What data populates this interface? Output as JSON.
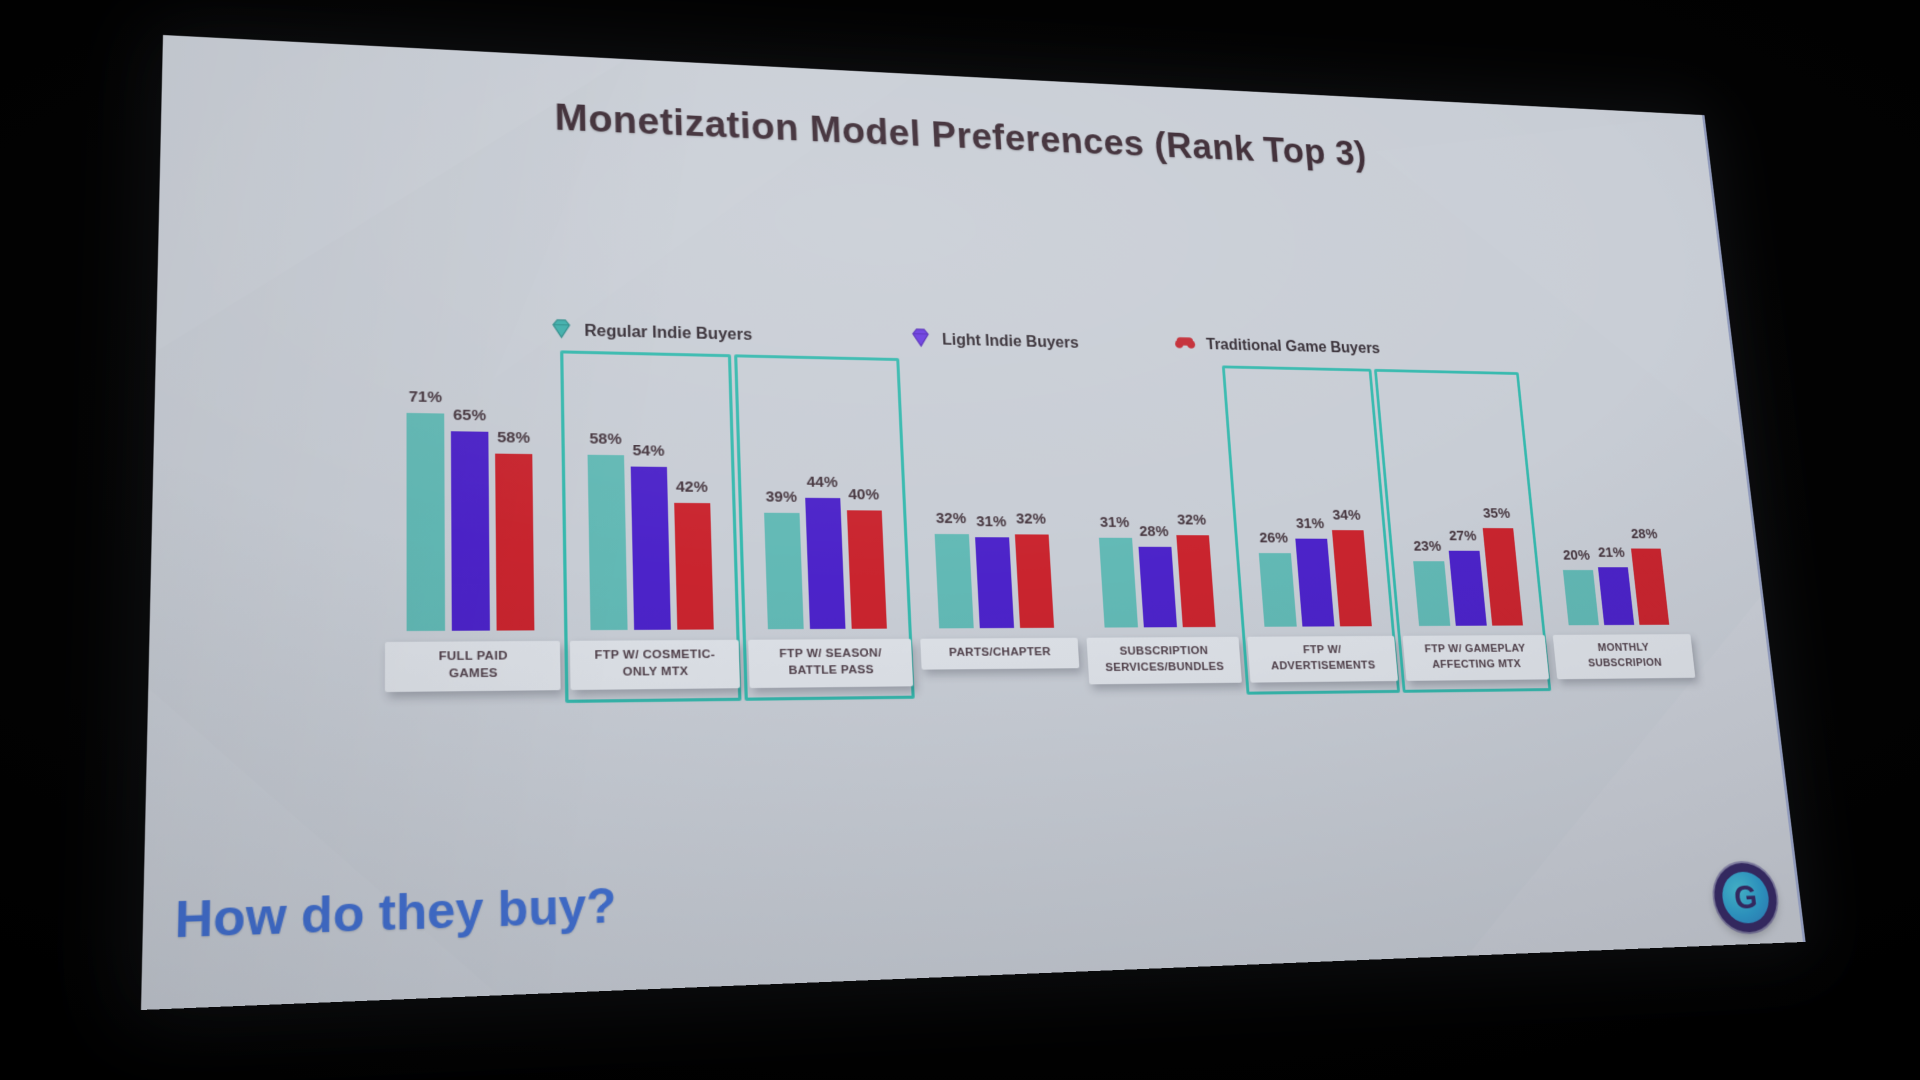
{
  "slide": {
    "title": "Monetization Model Preferences (Rank Top 3)",
    "footer_question": "How do they buy?",
    "logo_letter": "G",
    "colors": {
      "slide_background": "#c8cdd5",
      "title_text": "#3b2933",
      "value_label_text": "#46363f",
      "category_text": "#4f3f49",
      "highlight_box_border": "#36b9ae",
      "footer_text": "#4270d2",
      "logo_ring": "#372a66",
      "logo_inner": "#2f9fcf"
    }
  },
  "chart_data": {
    "type": "bar",
    "title": "Monetization Model Preferences (Rank Top 3)",
    "unit": "%",
    "value_labels_shown": true,
    "axes_shown": false,
    "grid": false,
    "legend_position": "top",
    "ylim": [
      0,
      80
    ],
    "categories": [
      "FULL PAID\nGAMES",
      "FTP W/ COSMETIC-\nONLY MTX",
      "FTP W/ SEASON/\nBATTLE PASS",
      "PARTS/CHAPTER",
      "SUBSCRIPTION\nSERVICES/BUNDLES",
      "FTP W/\nADVERTISEMENTS",
      "FTP W/ GAMEPLAY\nAFFECTING MTX",
      "MONTHLY\nSUBSCRIPION"
    ],
    "series": [
      {
        "name": "Regular Indie Buyers",
        "color": "#62b9b5",
        "icon": "gem-teal-icon",
        "values": [
          71,
          58,
          39,
          32,
          31,
          26,
          23,
          20
        ]
      },
      {
        "name": "Light Indie Buyers",
        "color": "#4c23c9",
        "icon": "gem-purple-icon",
        "values": [
          65,
          54,
          44,
          31,
          28,
          31,
          27,
          21
        ]
      },
      {
        "name": "Traditional Game Buyers",
        "color": "#c9242e",
        "icon": "gamepad-red-icon",
        "values": [
          58,
          42,
          40,
          32,
          32,
          34,
          35,
          28
        ]
      }
    ],
    "highlighted_category_indices": [
      1,
      2,
      5,
      6
    ]
  }
}
